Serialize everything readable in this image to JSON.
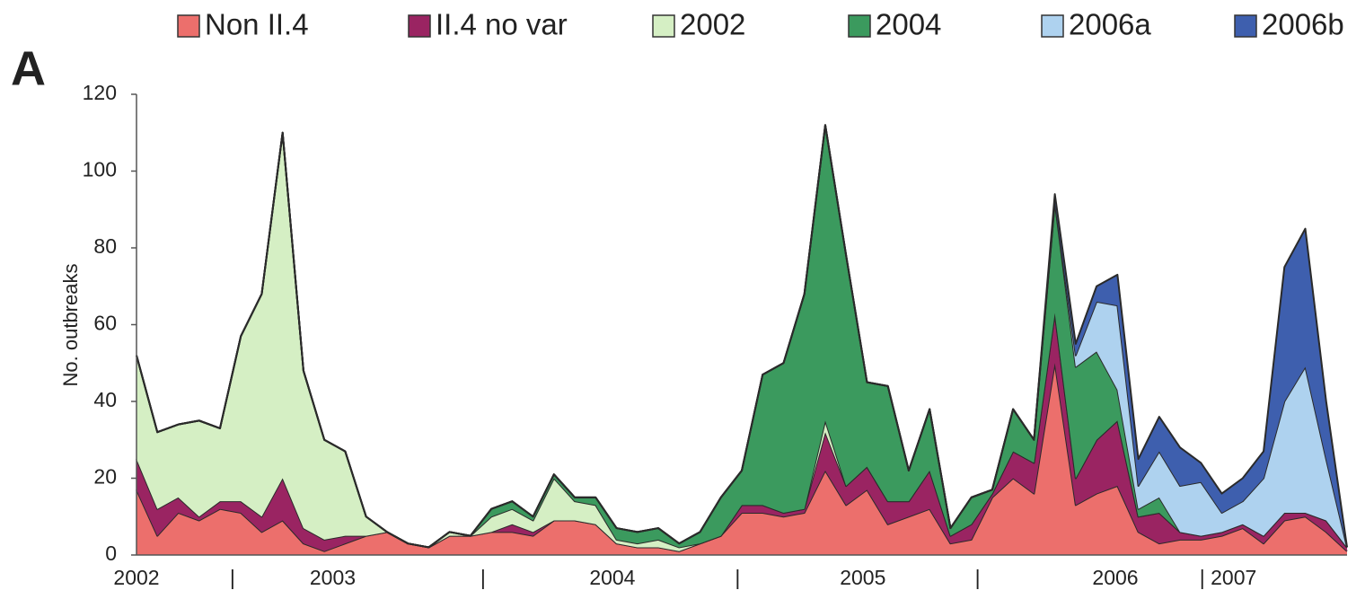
{
  "chart_data": {
    "type": "stacked_area",
    "panel_label": "A",
    "y_label": "No. outbreaks",
    "x": [
      0,
      1,
      2,
      3,
      4,
      5,
      6,
      7,
      8,
      9,
      10,
      11,
      12,
      13,
      14,
      15,
      16,
      17,
      18,
      19,
      20,
      21,
      22,
      23,
      24,
      25,
      26,
      27,
      28,
      29,
      30,
      31,
      32,
      33,
      34,
      35,
      36,
      37,
      38,
      39,
      40,
      41,
      42,
      43,
      44,
      45,
      46,
      47,
      48,
      49,
      50,
      51,
      52,
      53,
      54,
      55,
      56,
      57,
      58
    ],
    "xlim": [
      0,
      58
    ],
    "xticks": [
      {
        "value": 0,
        "label": "2002"
      },
      {
        "value": 4.6,
        "label": "|"
      },
      {
        "value": 9.4,
        "label": "2003"
      },
      {
        "value": 16.6,
        "label": "|"
      },
      {
        "value": 22.8,
        "label": "2004"
      },
      {
        "value": 28.8,
        "label": "|"
      },
      {
        "value": 34.8,
        "label": "2005"
      },
      {
        "value": 40.3,
        "label": "|"
      },
      {
        "value": 46.9,
        "label": "2006"
      },
      {
        "value": 52.3,
        "label": "| 2007"
      }
    ],
    "ylim": [
      0,
      120
    ],
    "yticks": [
      0,
      20,
      40,
      60,
      80,
      100,
      120
    ],
    "legend": "top",
    "series": [
      {
        "name": "Non II.4",
        "color": "#ec6f6c",
        "values": [
          17,
          5,
          11,
          9,
          12,
          11,
          6,
          9,
          3,
          1,
          3,
          5,
          6,
          3,
          2,
          5,
          5,
          6,
          6,
          5,
          9,
          9,
          8,
          3,
          2,
          2,
          1,
          3,
          5,
          11,
          11,
          10,
          11,
          22,
          13,
          17,
          8,
          10,
          12,
          3,
          4,
          15,
          20,
          16,
          50,
          13,
          16,
          18,
          6,
          3,
          4,
          4,
          5,
          7,
          3,
          9,
          10,
          6,
          1
        ]
      },
      {
        "name": "II.4 no var",
        "color": "#9a2462",
        "values": [
          8,
          7,
          4,
          1,
          2,
          3,
          4,
          11,
          4,
          3,
          2,
          0,
          0,
          0,
          0,
          0,
          0,
          0,
          2,
          1,
          0,
          0,
          0,
          0,
          0,
          0,
          0,
          0,
          0,
          2,
          2,
          1,
          1,
          10,
          5,
          6,
          6,
          4,
          10,
          2,
          4,
          1,
          7,
          8,
          13,
          7,
          14,
          17,
          4,
          8,
          2,
          1,
          1,
          1,
          2,
          2,
          1,
          3,
          1
        ]
      },
      {
        "name": "2002",
        "color": "#d5efc4",
        "values": [
          27,
          20,
          19,
          25,
          19,
          43,
          58,
          90,
          41,
          26,
          22,
          5,
          0,
          0,
          0,
          1,
          0,
          4,
          4,
          3,
          11,
          5,
          5,
          1,
          1,
          2,
          1,
          0,
          0,
          0,
          0,
          0,
          0,
          3,
          0,
          0,
          0,
          0,
          0,
          0,
          0,
          0,
          0,
          0,
          0,
          0,
          0,
          0,
          0,
          0,
          0,
          0,
          0,
          0,
          0,
          0,
          0,
          0,
          0
        ]
      },
      {
        "name": "2004",
        "color": "#3b9a5e",
        "values": [
          0,
          0,
          0,
          0,
          0,
          0,
          0,
          0,
          0,
          0,
          0,
          0,
          0,
          0,
          0,
          0,
          0,
          2,
          2,
          1,
          1,
          1,
          2,
          3,
          3,
          3,
          1,
          3,
          10,
          9,
          34,
          39,
          56,
          77,
          60,
          22,
          30,
          8,
          16,
          2,
          7,
          1,
          11,
          6,
          29,
          29,
          23,
          8,
          2,
          4,
          0,
          0,
          0,
          0,
          0,
          0,
          0,
          0,
          0
        ]
      },
      {
        "name": "2006a",
        "color": "#aed2ef",
        "values": [
          0,
          0,
          0,
          0,
          0,
          0,
          0,
          0,
          0,
          0,
          0,
          0,
          0,
          0,
          0,
          0,
          0,
          0,
          0,
          0,
          0,
          0,
          0,
          0,
          0,
          0,
          0,
          0,
          0,
          0,
          0,
          0,
          0,
          0,
          0,
          0,
          0,
          0,
          0,
          0,
          0,
          0,
          0,
          0,
          0,
          3,
          13,
          22,
          6,
          12,
          12,
          14,
          5,
          6,
          15,
          29,
          38,
          16,
          0
        ]
      },
      {
        "name": "2006b",
        "color": "#3e5fae",
        "values": [
          0,
          0,
          0,
          0,
          0,
          0,
          0,
          0,
          0,
          0,
          0,
          0,
          0,
          0,
          0,
          0,
          0,
          0,
          0,
          0,
          0,
          0,
          0,
          0,
          0,
          0,
          0,
          0,
          0,
          0,
          0,
          0,
          0,
          0,
          0,
          0,
          0,
          0,
          0,
          0,
          0,
          0,
          0,
          0,
          2,
          3,
          4,
          8,
          7,
          9,
          10,
          5,
          5,
          6,
          7,
          35,
          36,
          15,
          0
        ]
      }
    ]
  }
}
